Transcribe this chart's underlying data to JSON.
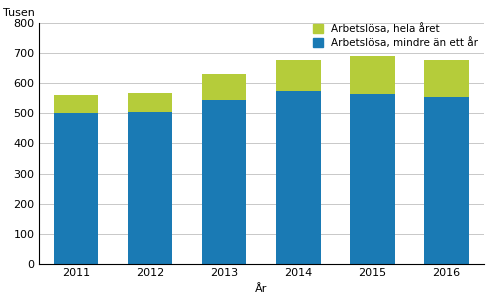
{
  "years": [
    2011,
    2012,
    2013,
    2014,
    2015,
    2016
  ],
  "blue_values": [
    500,
    505,
    545,
    575,
    565,
    555
  ],
  "green_values": [
    60,
    62,
    85,
    103,
    127,
    123
  ],
  "blue_color": "#1a7ab4",
  "green_color": "#b5cc3a",
  "ylabel": "Tusen",
  "xlabel": "År",
  "ylim": [
    0,
    800
  ],
  "yticks": [
    0,
    100,
    200,
    300,
    400,
    500,
    600,
    700,
    800
  ],
  "legend_label_green": "Arbetslösa, hela året",
  "legend_label_blue": "Arbetslösa, mindre än ett år",
  "background_color": "#ffffff",
  "grid_color": "#c8c8c8"
}
